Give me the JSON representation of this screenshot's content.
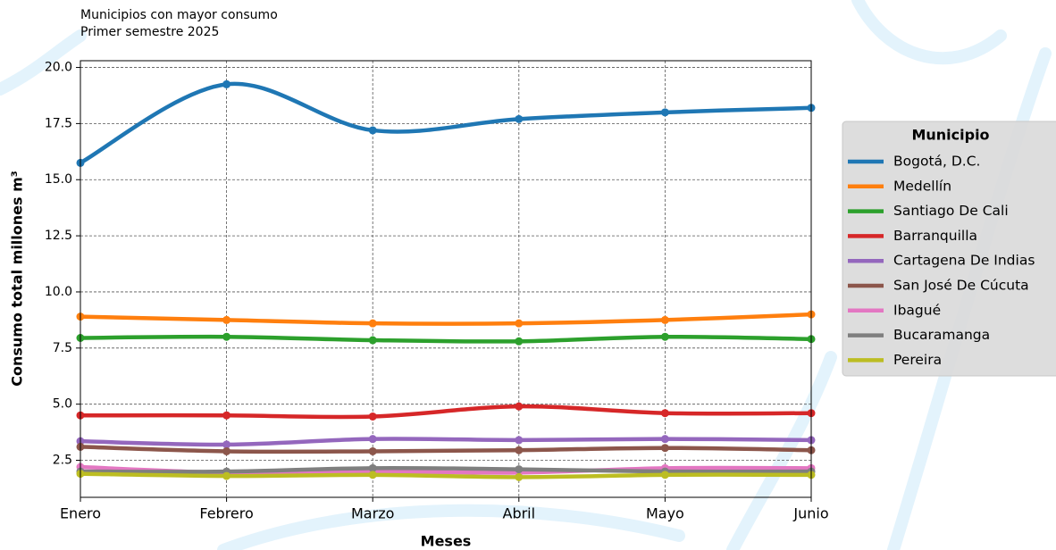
{
  "chart_data": {
    "type": "line",
    "title": "Municipios con mayor consumo",
    "subtitle": "Primer semestre 2025",
    "x_label": "Meses",
    "y_label": "Consumo total millones m³",
    "legend_title": "Municipio",
    "legend_position": "right",
    "grid": true,
    "categories": [
      "Enero",
      "Febrero",
      "Marzo",
      "Abril",
      "Mayo",
      "Junio"
    ],
    "ylim": [
      0.85,
      20.3
    ],
    "yticks": [
      2.5,
      {
        "value": 5,
        "label": "5.0"
      },
      7.5,
      {
        "value": 10,
        "label": "10.0"
      },
      12.5,
      {
        "value": 15,
        "label": "15.0"
      },
      17.5,
      {
        "value": 20,
        "label": "20.0"
      }
    ],
    "series": [
      {
        "name": "Bogotá, D.C.",
        "color": "#1f77b4",
        "values": [
          15.75,
          19.25,
          17.2,
          17.7,
          18.0,
          18.2
        ]
      },
      {
        "name": "Medellín",
        "color": "#ff7f0e",
        "values": [
          8.9,
          8.75,
          8.6,
          8.6,
          8.75,
          9.0
        ]
      },
      {
        "name": "Santiago De Cali",
        "color": "#2ca02c",
        "values": [
          7.95,
          8.0,
          7.85,
          7.8,
          8.0,
          7.9
        ]
      },
      {
        "name": "Barranquilla",
        "color": "#d62728",
        "values": [
          4.5,
          4.5,
          4.45,
          4.9,
          4.6,
          4.6
        ]
      },
      {
        "name": "Cartagena De Indias",
        "color": "#9467bd",
        "values": [
          3.35,
          3.2,
          3.45,
          3.4,
          3.45,
          3.4
        ]
      },
      {
        "name": "San José De Cúcuta",
        "color": "#8c564b",
        "values": [
          3.1,
          2.9,
          2.9,
          2.95,
          3.05,
          2.95
        ]
      },
      {
        "name": "Ibagué",
        "color": "#e377c2",
        "values": [
          2.2,
          1.95,
          2.0,
          1.95,
          2.15,
          2.15
        ]
      },
      {
        "name": "Bucaramanga",
        "color": "#7f7f7f",
        "values": [
          2.0,
          2.0,
          2.15,
          2.1,
          2.0,
          2.0
        ]
      },
      {
        "name": "Pereira",
        "color": "#bcbd22",
        "values": [
          1.9,
          1.8,
          1.85,
          1.75,
          1.85,
          1.85
        ]
      }
    ]
  }
}
